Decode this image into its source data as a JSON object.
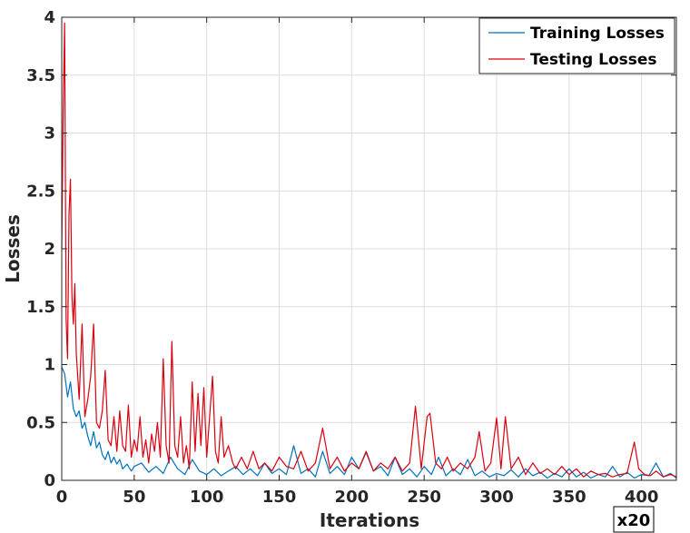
{
  "chart_data": {
    "type": "line",
    "xlabel": "Iterations",
    "ylabel": "Losses",
    "x_multiplier": "x20",
    "xlim": [
      0,
      424
    ],
    "ylim": [
      0,
      4
    ],
    "xticks": [
      "0",
      "50",
      "100",
      "150",
      "200",
      "250",
      "300",
      "350",
      "400"
    ],
    "yticks": [
      "0",
      "0.5",
      "1",
      "1.5",
      "2",
      "2.5",
      "3",
      "3.5",
      "4"
    ],
    "grid": true,
    "legend_position": "top-right",
    "series": [
      {
        "name": "Training Losses",
        "color": "#0072BD",
        "points": [
          [
            0,
            0.98
          ],
          [
            2,
            0.92
          ],
          [
            4,
            0.72
          ],
          [
            6,
            0.85
          ],
          [
            8,
            0.62
          ],
          [
            10,
            0.55
          ],
          [
            12,
            0.6
          ],
          [
            14,
            0.45
          ],
          [
            16,
            0.5
          ],
          [
            18,
            0.38
          ],
          [
            20,
            0.3
          ],
          [
            22,
            0.42
          ],
          [
            24,
            0.28
          ],
          [
            26,
            0.33
          ],
          [
            28,
            0.22
          ],
          [
            30,
            0.18
          ],
          [
            32,
            0.25
          ],
          [
            34,
            0.15
          ],
          [
            36,
            0.2
          ],
          [
            38,
            0.14
          ],
          [
            40,
            0.18
          ],
          [
            42,
            0.1
          ],
          [
            45,
            0.14
          ],
          [
            48,
            0.08
          ],
          [
            50,
            0.12
          ],
          [
            55,
            0.15
          ],
          [
            60,
            0.07
          ],
          [
            65,
            0.12
          ],
          [
            70,
            0.06
          ],
          [
            75,
            0.2
          ],
          [
            80,
            0.1
          ],
          [
            85,
            0.05
          ],
          [
            90,
            0.18
          ],
          [
            95,
            0.08
          ],
          [
            100,
            0.05
          ],
          [
            105,
            0.1
          ],
          [
            110,
            0.04
          ],
          [
            115,
            0.08
          ],
          [
            120,
            0.12
          ],
          [
            125,
            0.05
          ],
          [
            130,
            0.1
          ],
          [
            135,
            0.04
          ],
          [
            140,
            0.15
          ],
          [
            145,
            0.06
          ],
          [
            150,
            0.1
          ],
          [
            155,
            0.05
          ],
          [
            160,
            0.3
          ],
          [
            165,
            0.06
          ],
          [
            170,
            0.1
          ],
          [
            175,
            0.03
          ],
          [
            180,
            0.25
          ],
          [
            185,
            0.06
          ],
          [
            190,
            0.12
          ],
          [
            195,
            0.05
          ],
          [
            200,
            0.2
          ],
          [
            205,
            0.1
          ],
          [
            210,
            0.24
          ],
          [
            215,
            0.08
          ],
          [
            220,
            0.12
          ],
          [
            225,
            0.04
          ],
          [
            230,
            0.2
          ],
          [
            235,
            0.05
          ],
          [
            240,
            0.1
          ],
          [
            245,
            0.03
          ],
          [
            250,
            0.12
          ],
          [
            255,
            0.05
          ],
          [
            260,
            0.2
          ],
          [
            265,
            0.04
          ],
          [
            270,
            0.1
          ],
          [
            275,
            0.05
          ],
          [
            280,
            0.18
          ],
          [
            285,
            0.04
          ],
          [
            290,
            0.08
          ],
          [
            295,
            0.03
          ],
          [
            300,
            0.06
          ],
          [
            305,
            0.04
          ],
          [
            310,
            0.09
          ],
          [
            315,
            0.03
          ],
          [
            320,
            0.1
          ],
          [
            325,
            0.04
          ],
          [
            330,
            0.07
          ],
          [
            335,
            0.02
          ],
          [
            340,
            0.06
          ],
          [
            345,
            0.03
          ],
          [
            350,
            0.1
          ],
          [
            355,
            0.03
          ],
          [
            360,
            0.07
          ],
          [
            365,
            0.02
          ],
          [
            370,
            0.05
          ],
          [
            375,
            0.03
          ],
          [
            380,
            0.12
          ],
          [
            385,
            0.03
          ],
          [
            390,
            0.07
          ],
          [
            395,
            0.02
          ],
          [
            400,
            0.05
          ],
          [
            405,
            0.04
          ],
          [
            410,
            0.15
          ],
          [
            415,
            0.03
          ],
          [
            420,
            0.06
          ],
          [
            424,
            0.02
          ]
        ]
      },
      {
        "name": "Testing Losses",
        "color": "#D9000F",
        "points": [
          [
            0,
            2.0
          ],
          [
            1,
            3.2
          ],
          [
            2,
            3.95
          ],
          [
            3,
            1.4
          ],
          [
            4,
            1.05
          ],
          [
            5,
            2.3
          ],
          [
            6,
            2.6
          ],
          [
            7,
            1.6
          ],
          [
            8,
            1.35
          ],
          [
            9,
            1.7
          ],
          [
            10,
            1.1
          ],
          [
            12,
            0.7
          ],
          [
            14,
            1.35
          ],
          [
            16,
            0.55
          ],
          [
            18,
            0.7
          ],
          [
            20,
            0.9
          ],
          [
            22,
            1.35
          ],
          [
            24,
            0.5
          ],
          [
            26,
            0.45
          ],
          [
            28,
            0.6
          ],
          [
            30,
            0.95
          ],
          [
            32,
            0.35
          ],
          [
            34,
            0.3
          ],
          [
            36,
            0.55
          ],
          [
            38,
            0.25
          ],
          [
            40,
            0.6
          ],
          [
            42,
            0.3
          ],
          [
            44,
            0.25
          ],
          [
            46,
            0.65
          ],
          [
            48,
            0.2
          ],
          [
            50,
            0.35
          ],
          [
            52,
            0.25
          ],
          [
            54,
            0.55
          ],
          [
            56,
            0.2
          ],
          [
            58,
            0.35
          ],
          [
            60,
            0.15
          ],
          [
            62,
            0.4
          ],
          [
            64,
            0.25
          ],
          [
            66,
            0.5
          ],
          [
            68,
            0.2
          ],
          [
            70,
            1.05
          ],
          [
            72,
            0.3
          ],
          [
            74,
            0.15
          ],
          [
            76,
            1.2
          ],
          [
            78,
            0.3
          ],
          [
            80,
            0.2
          ],
          [
            82,
            0.55
          ],
          [
            84,
            0.15
          ],
          [
            86,
            0.3
          ],
          [
            88,
            0.1
          ],
          [
            90,
            0.85
          ],
          [
            92,
            0.25
          ],
          [
            94,
            0.75
          ],
          [
            96,
            0.3
          ],
          [
            98,
            0.8
          ],
          [
            100,
            0.2
          ],
          [
            102,
            0.55
          ],
          [
            104,
            0.9
          ],
          [
            106,
            0.25
          ],
          [
            108,
            0.15
          ],
          [
            110,
            0.55
          ],
          [
            112,
            0.2
          ],
          [
            115,
            0.3
          ],
          [
            118,
            0.15
          ],
          [
            120,
            0.1
          ],
          [
            124,
            0.2
          ],
          [
            128,
            0.1
          ],
          [
            132,
            0.25
          ],
          [
            136,
            0.1
          ],
          [
            140,
            0.15
          ],
          [
            145,
            0.08
          ],
          [
            150,
            0.2
          ],
          [
            155,
            0.12
          ],
          [
            160,
            0.1
          ],
          [
            165,
            0.25
          ],
          [
            170,
            0.08
          ],
          [
            175,
            0.15
          ],
          [
            180,
            0.45
          ],
          [
            185,
            0.1
          ],
          [
            190,
            0.2
          ],
          [
            195,
            0.08
          ],
          [
            200,
            0.15
          ],
          [
            205,
            0.1
          ],
          [
            210,
            0.25
          ],
          [
            215,
            0.08
          ],
          [
            220,
            0.15
          ],
          [
            225,
            0.1
          ],
          [
            230,
            0.2
          ],
          [
            235,
            0.08
          ],
          [
            240,
            0.15
          ],
          [
            244,
            0.64
          ],
          [
            248,
            0.1
          ],
          [
            252,
            0.55
          ],
          [
            254,
            0.58
          ],
          [
            258,
            0.15
          ],
          [
            262,
            0.1
          ],
          [
            266,
            0.2
          ],
          [
            270,
            0.08
          ],
          [
            275,
            0.15
          ],
          [
            280,
            0.1
          ],
          [
            285,
            0.2
          ],
          [
            288,
            0.42
          ],
          [
            292,
            0.08
          ],
          [
            296,
            0.15
          ],
          [
            300,
            0.54
          ],
          [
            303,
            0.1
          ],
          [
            306,
            0.55
          ],
          [
            310,
            0.1
          ],
          [
            315,
            0.2
          ],
          [
            320,
            0.05
          ],
          [
            325,
            0.15
          ],
          [
            330,
            0.06
          ],
          [
            335,
            0.1
          ],
          [
            340,
            0.05
          ],
          [
            345,
            0.12
          ],
          [
            350,
            0.05
          ],
          [
            355,
            0.1
          ],
          [
            360,
            0.03
          ],
          [
            365,
            0.08
          ],
          [
            370,
            0.05
          ],
          [
            375,
            0.06
          ],
          [
            380,
            0.03
          ],
          [
            385,
            0.05
          ],
          [
            390,
            0.06
          ],
          [
            395,
            0.33
          ],
          [
            398,
            0.1
          ],
          [
            402,
            0.05
          ],
          [
            406,
            0.04
          ],
          [
            410,
            0.08
          ],
          [
            415,
            0.03
          ],
          [
            420,
            0.05
          ],
          [
            424,
            0.03
          ]
        ]
      }
    ]
  }
}
